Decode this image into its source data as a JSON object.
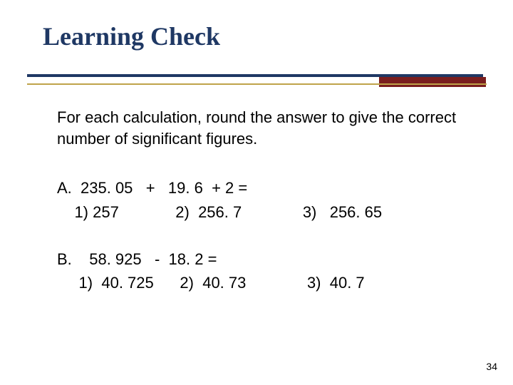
{
  "colors": {
    "title": "#1f3864",
    "divider_main": "#1f3864",
    "divider_accent": "#7a1e1e",
    "divider_line": "#bfa34a",
    "background": "#ffffff",
    "text": "#000000"
  },
  "typography": {
    "title_font": "Times New Roman",
    "title_size_pt": 28,
    "title_weight": "bold",
    "body_font": "Arial",
    "body_size_pt": 17
  },
  "title": "Learning Check",
  "instruction": "For each calculation, round the answer to give the correct number of significant figures.",
  "problems": [
    {
      "label": "A.",
      "stem": "A.  235. 05   +   19. 6  + 2 =",
      "choices_line": "    1) 257             2)  256. 7              3)   256. 65",
      "choices": [
        "257",
        "256. 7",
        "256. 65"
      ]
    },
    {
      "label": "B.",
      "stem": "B.    58. 925   -  18. 2 =",
      "choices_line": "     1)  40. 725      2)  40. 73              3)  40. 7",
      "choices": [
        "40. 725",
        "40. 73",
        "40. 7"
      ]
    }
  ],
  "page_number": "34"
}
